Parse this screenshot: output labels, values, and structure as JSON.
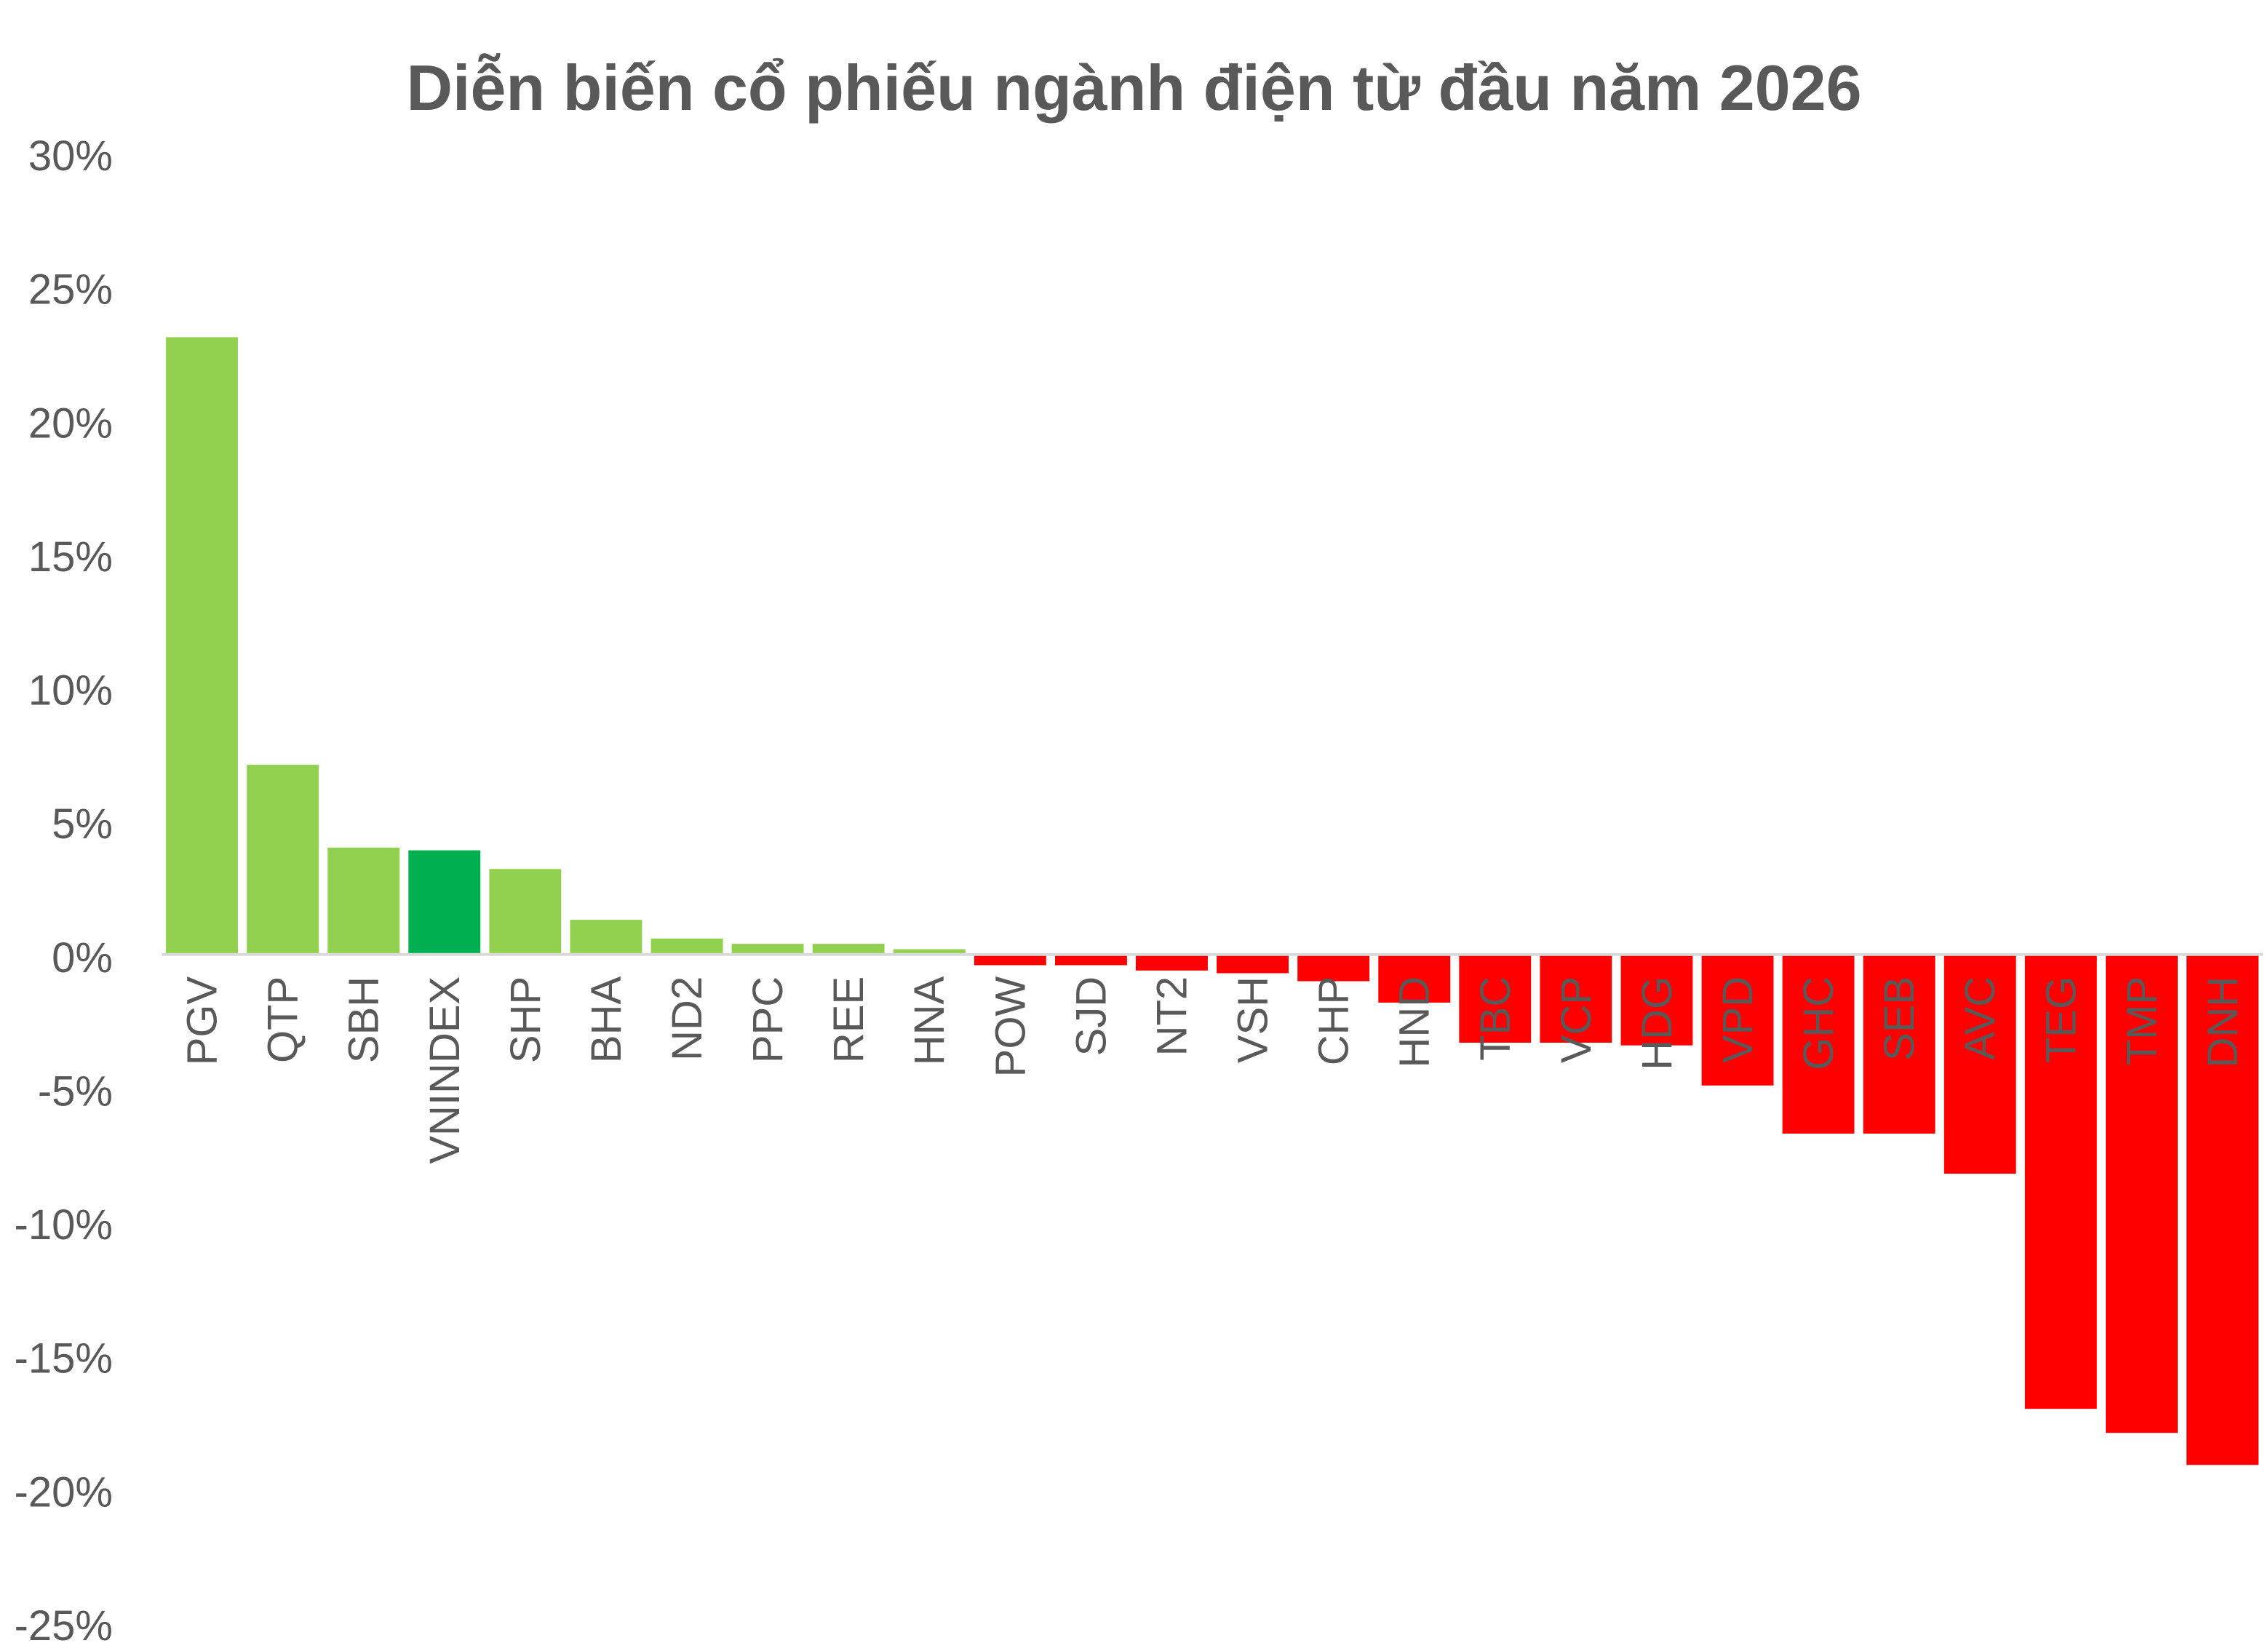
{
  "chart_data": {
    "type": "bar",
    "title": "Diễn biến cổ phiếu ngành điện từ đầu năm 2026",
    "xlabel": "",
    "ylabel": "",
    "ylim": [
      -25,
      30
    ],
    "y_ticks": [
      30,
      25,
      20,
      15,
      10,
      5,
      0,
      -5,
      -10,
      -15,
      -20,
      -25
    ],
    "y_tick_labels": [
      "30%",
      "25%",
      "20%",
      "15%",
      "10%",
      "5%",
      "0%",
      "-5%",
      "-10%",
      "-15%",
      "-20%",
      "-25%"
    ],
    "grid": false,
    "legend": "none",
    "categories": [
      "PGV",
      "QTP",
      "SBH",
      "VNINDEX",
      "SHP",
      "BHA",
      "ND2",
      "PPC",
      "REE",
      "HNA",
      "POW",
      "SJD",
      "NT2",
      "VSH",
      "CHP",
      "HND",
      "TBC",
      "VCP",
      "HDG",
      "VPD",
      "GHC",
      "SEB",
      "AVC",
      "TEG",
      "TMP",
      "DNH"
    ],
    "values": [
      23.1,
      7.1,
      4.0,
      3.9,
      3.2,
      1.3,
      0.6,
      0.4,
      0.4,
      0.2,
      -0.4,
      -0.4,
      -0.6,
      -0.7,
      -1.0,
      -1.8,
      -3.3,
      -3.3,
      -3.4,
      -4.9,
      -6.7,
      -6.7,
      -8.2,
      -17.0,
      -17.9,
      -19.1
    ],
    "colors": {
      "positive": "#92d050",
      "index": "#00b050",
      "negative": "#ff0000",
      "axis_text": "#595959",
      "axis_line": "#d9d9d9"
    },
    "highlight_category": "VNINDEX"
  }
}
